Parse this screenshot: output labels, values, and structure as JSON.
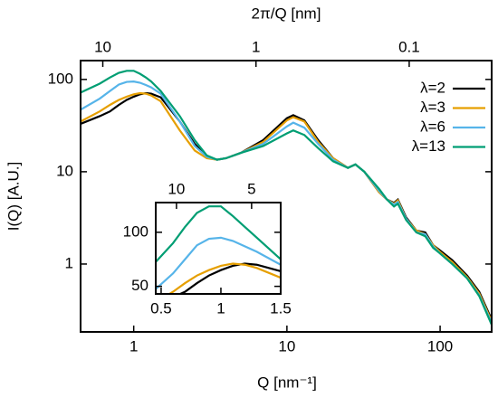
{
  "chart_data": [
    {
      "type": "line",
      "x_label": "Q [nm⁻¹]",
      "y_label": "I(Q) [A.U.]",
      "x2_label": "2π/Q [nm]",
      "xscale": "log",
      "yscale": "log",
      "xlim": [
        0.45,
        217
      ],
      "ylim": [
        0.184,
        160
      ],
      "xticks": [
        1,
        10,
        100
      ],
      "yticks": [
        1,
        10,
        100
      ],
      "x2ticks": [
        10,
        1,
        0.1
      ],
      "legend": "upper right",
      "x": [
        0.45,
        0.6,
        0.7,
        0.8,
        0.9,
        1.0,
        1.1,
        1.2,
        1.3,
        1.5,
        2,
        2.5,
        3,
        3.5,
        4,
        5,
        7,
        10,
        11,
        13,
        16,
        20,
        25,
        28,
        32,
        40,
        45,
        50,
        53,
        60,
        70,
        80,
        90,
        100,
        120,
        150,
        180,
        217
      ],
      "series": [
        {
          "name": "λ=2",
          "color": "#000000",
          "values": [
            33,
            40,
            45,
            53,
            60,
            65,
            69,
            71,
            70,
            64,
            35,
            20,
            14.5,
            13.5,
            14,
            16,
            22,
            38,
            41,
            36,
            22,
            14,
            11,
            12,
            10,
            6,
            5,
            4.6,
            5,
            3.2,
            2.3,
            2.2,
            1.6,
            1.4,
            1.1,
            0.75,
            0.5,
            0.25
          ]
        },
        {
          "name": "λ=3",
          "color": "#E69F00",
          "values": [
            35,
            45,
            53,
            60,
            65,
            69,
            71,
            70,
            67,
            58,
            28,
            17,
            14,
            13.5,
            14,
            16,
            21,
            36,
            39,
            35,
            21,
            14,
            11,
            12,
            10,
            6,
            5,
            4.5,
            4.9,
            3.1,
            2.3,
            2.1,
            1.6,
            1.35,
            1.05,
            0.72,
            0.48,
            0.24
          ]
        },
        {
          "name": "λ=6",
          "color": "#56B4E9",
          "values": [
            47,
            62,
            75,
            88,
            94,
            95,
            92,
            87,
            82,
            70,
            35,
            19,
            14.5,
            13.5,
            14,
            16,
            20,
            31,
            34,
            30,
            20,
            13.5,
            11,
            12,
            10,
            6.2,
            5,
            4.4,
            4.7,
            3.1,
            2.2,
            2.1,
            1.55,
            1.3,
            1.0,
            0.7,
            0.46,
            0.23
          ]
        },
        {
          "name": "λ=13",
          "color": "#009E73",
          "values": [
            72,
            90,
            105,
            118,
            124,
            124,
            115,
            105,
            95,
            75,
            40,
            22,
            15,
            13.5,
            14,
            16,
            19,
            26,
            28,
            25,
            18,
            13,
            11,
            12,
            10,
            6.5,
            5,
            4.2,
            4.5,
            3,
            2.2,
            2,
            1.5,
            1.3,
            1.0,
            0.7,
            0.45,
            0.22
          ]
        }
      ]
    },
    {
      "type": "line",
      "xlim": [
        0.455,
        1.5
      ],
      "ylim": [
        43,
        127.5
      ],
      "xticks": [
        0.5,
        1,
        1.5
      ],
      "yticks": [
        50,
        100
      ],
      "x2ticks": [
        10,
        5
      ]
    }
  ]
}
